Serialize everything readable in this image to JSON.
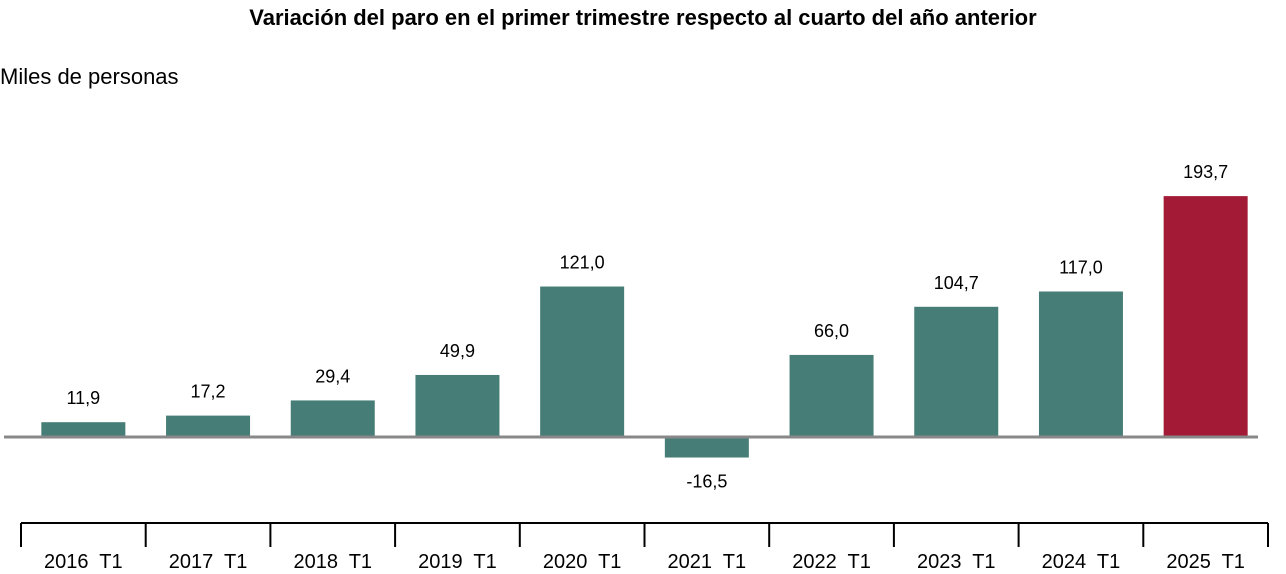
{
  "chart_data": {
    "type": "bar",
    "title": "Variación del paro en el primer trimestre respecto al cuarto del año anterior",
    "subtitle": "Miles de personas",
    "categories": [
      "2016  T1",
      "2017  T1",
      "2018  T1",
      "2019  T1",
      "2020  T1",
      "2021  T1",
      "2022  T1",
      "2023  T1",
      "2024  T1",
      "2025  T1"
    ],
    "values": [
      11.9,
      17.2,
      29.4,
      49.9,
      121.0,
      -16.5,
      66.0,
      104.7,
      117.0,
      193.7
    ],
    "value_labels": [
      "11,9",
      "17,2",
      "29,4",
      "49,9",
      "121,0",
      "-16,5",
      "66,0",
      "104,7",
      "117,0",
      "193,7"
    ],
    "colors": {
      "default": "#467d77",
      "highlight": "#a21a35",
      "zero_line": "#888888",
      "axis": "#000000"
    },
    "highlight_index": 9,
    "ylim": [
      -16.5,
      193.7
    ],
    "grid": false,
    "legend": "none"
  }
}
